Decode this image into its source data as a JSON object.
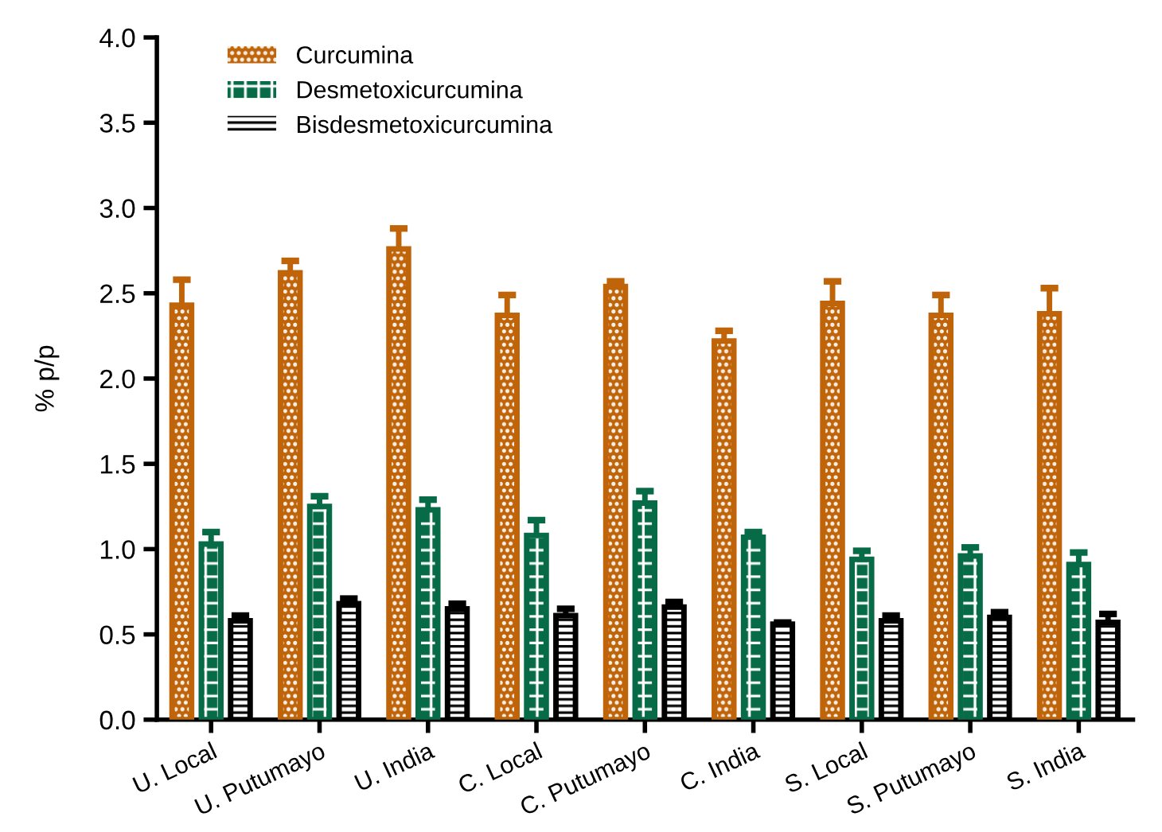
{
  "chart_data": {
    "type": "bar",
    "ylabel": "% p/p",
    "categories": [
      "U. Local",
      "U. Putumayo",
      "U. India",
      "C. Local",
      "C. Putumayo",
      "C. India",
      "S. Local",
      "S. Putumayo",
      "S. India"
    ],
    "series": [
      {
        "name": "Curcumina",
        "color": "#c0640a",
        "values": [
          2.43,
          2.62,
          2.76,
          2.37,
          2.54,
          2.22,
          2.44,
          2.37,
          2.38
        ],
        "errors": [
          0.15,
          0.07,
          0.12,
          0.12,
          0.03,
          0.06,
          0.13,
          0.12,
          0.15
        ]
      },
      {
        "name": "Desmetoxicurcumina",
        "color": "#076b48",
        "values": [
          1.03,
          1.25,
          1.23,
          1.08,
          1.27,
          1.07,
          0.94,
          0.96,
          0.91
        ],
        "errors": [
          0.07,
          0.06,
          0.06,
          0.09,
          0.07,
          0.03,
          0.05,
          0.05,
          0.07
        ]
      },
      {
        "name": "Bisdesmetoxicurcumina",
        "color": "#000000",
        "values": [
          0.58,
          0.68,
          0.65,
          0.61,
          0.66,
          0.56,
          0.58,
          0.6,
          0.57
        ],
        "errors": [
          0.03,
          0.03,
          0.03,
          0.04,
          0.03,
          0.01,
          0.03,
          0.03,
          0.05
        ]
      }
    ],
    "ylim": [
      0,
      4.0
    ],
    "yticks": [
      {
        "value": 0,
        "label": "0.0"
      },
      {
        "value": 0.5,
        "label": "0.5"
      },
      {
        "value": 1.0,
        "label": "1.0"
      },
      {
        "value": 1.5,
        "label": "1.5"
      },
      {
        "value": 2.0,
        "label": "2.0"
      },
      {
        "value": 2.5,
        "label": "2.5"
      },
      {
        "value": 3.0,
        "label": "3.0"
      },
      {
        "value": 3.5,
        "label": "3.5"
      },
      {
        "value": 4.0,
        "label": "4.0"
      }
    ],
    "grid": false,
    "legend": "top left"
  }
}
